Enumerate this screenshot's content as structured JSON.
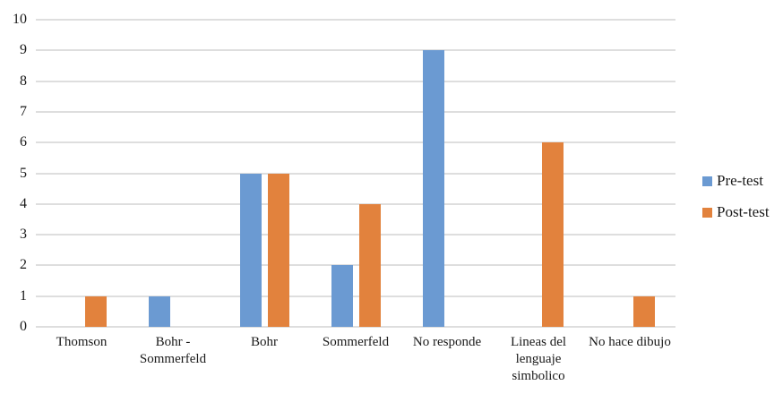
{
  "chart_data": {
    "type": "bar",
    "title": "",
    "xlabel": "",
    "ylabel": "",
    "categories": [
      "Thomson",
      "Bohr -\nSommerfeld",
      "Bohr",
      "Sommerfeld",
      "No responde",
      "Lineas del\nlenguaje\nsimbolico",
      "No hace dibujo"
    ],
    "series": [
      {
        "name": "Pre-test",
        "color": "#6B9AD2",
        "values": [
          0,
          1,
          5,
          2,
          9,
          0,
          0
        ]
      },
      {
        "name": "Post-test",
        "color": "#E2823D",
        "values": [
          1,
          0,
          5,
          4,
          0,
          6,
          1
        ]
      }
    ],
    "ylim": [
      0,
      10
    ],
    "ytick_step": 1,
    "grid": "horizontal",
    "gridline_color": "#DEDEDE",
    "legend_position": "right",
    "text_color": "#1A1A1A"
  }
}
